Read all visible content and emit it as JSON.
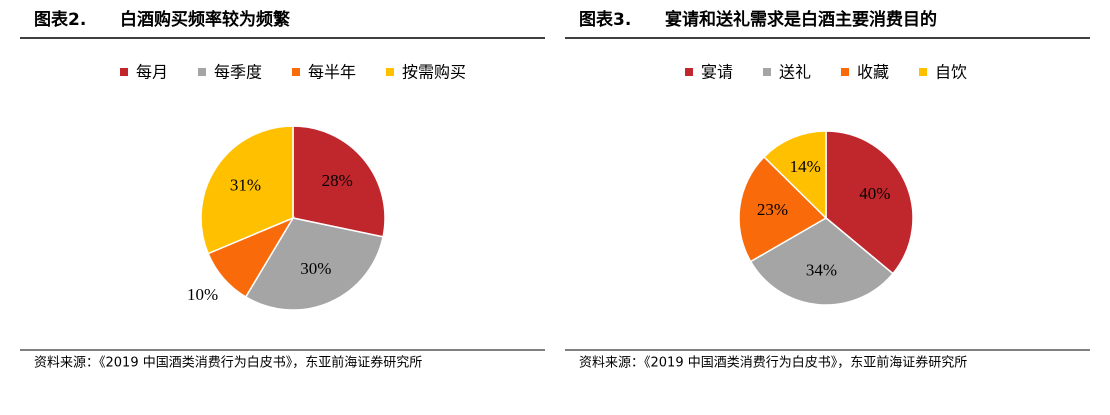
{
  "chart_data": [
    {
      "type": "pie",
      "label": "图表2.",
      "title": "白酒购买频率较为频繁",
      "categories": [
        "每月",
        "每季度",
        "每半年",
        "按需购买"
      ],
      "values": [
        28,
        30,
        10,
        31
      ],
      "value_labels": [
        "28%",
        "30%",
        "10%",
        "31%"
      ],
      "colors": [
        "#c0272d",
        "#a5a5a5",
        "#f96a0a",
        "#ffc000"
      ],
      "source": "资料来源：《2019 中国酒类消费行为白皮书》，东亚前海证券研究所"
    },
    {
      "type": "pie",
      "label": "图表3.",
      "title": "宴请和送礼需求是白酒主要消费目的",
      "categories": [
        "宴请",
        "送礼",
        "收藏",
        "自饮"
      ],
      "values": [
        40,
        34,
        23,
        14
      ],
      "value_labels": [
        "40%",
        "34%",
        "23%",
        "14%"
      ],
      "colors": [
        "#c0272d",
        "#a5a5a5",
        "#f96a0a",
        "#ffc000"
      ],
      "source": "资料来源：《2019 中国酒类消费行为白皮书》，东亚前海证券研究所"
    }
  ]
}
